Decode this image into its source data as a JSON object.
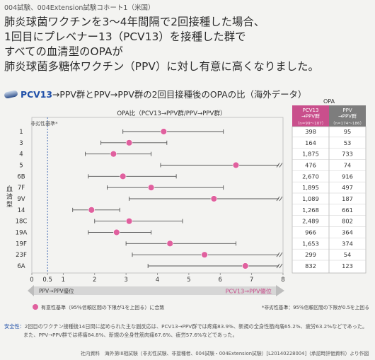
{
  "study_line": "004試験、004Extension試験コホート1（米国）",
  "headline": [
    "肺炎球菌ワクチンを3～4年間隔で2回接種した場合、",
    "1回目にプレベナー13（PCV13）を接種した群で",
    "すべての血清型のOPAが",
    "肺炎球菌多糖体ワクチン（PPV）に対し有意に高くなりました。"
  ],
  "subtitle": {
    "pcv_label": "PCV13",
    "rest": "→PPV群とPPV→PPV群の2回目接種後のOPAの比（海外データ）"
  },
  "colors": {
    "point": "#e0609e",
    "ci_line": "#555555",
    "dashed_line": "#4a6fb5",
    "table_header_pcv": "#c94f8c",
    "table_header_ppv": "#7d7d7d",
    "accent_blue": "#1f4fa8"
  },
  "chart_data": {
    "type": "forest",
    "title": "OPA比（PCV13→PPV群/PPV→PPV群）",
    "ylabel": "血清型",
    "xlim": [
      0,
      8
    ],
    "x_ticks": [
      "0",
      "0.5",
      "1",
      "2",
      "3",
      "4",
      "5",
      "6",
      "7",
      "8"
    ],
    "x_tick_values": [
      0,
      0.5,
      1,
      2,
      3,
      4,
      5,
      6,
      7,
      8
    ],
    "reference_line": {
      "x": 0.5,
      "label": "非劣性基準*"
    },
    "serotypes": [
      {
        "name": "1",
        "ratio": 4.2,
        "ci_low": 2.9,
        "ci_high": 6.1,
        "truncated": false
      },
      {
        "name": "3",
        "ratio": 3.1,
        "ci_low": 2.2,
        "ci_high": 4.3,
        "truncated": false
      },
      {
        "name": "4",
        "ratio": 2.6,
        "ci_low": 1.7,
        "ci_high": 3.8,
        "truncated": false
      },
      {
        "name": "5",
        "ratio": 6.5,
        "ci_low": 4.1,
        "ci_high": 8.0,
        "truncated": true
      },
      {
        "name": "6B",
        "ratio": 2.9,
        "ci_low": 1.8,
        "ci_high": 4.6,
        "truncated": false
      },
      {
        "name": "7F",
        "ratio": 3.8,
        "ci_low": 2.4,
        "ci_high": 6.1,
        "truncated": false
      },
      {
        "name": "9V",
        "ratio": 5.8,
        "ci_low": 3.1,
        "ci_high": 8.0,
        "truncated": true
      },
      {
        "name": "14",
        "ratio": 1.9,
        "ci_low": 1.3,
        "ci_high": 2.8,
        "truncated": false
      },
      {
        "name": "18C",
        "ratio": 3.1,
        "ci_low": 2.0,
        "ci_high": 4.8,
        "truncated": false
      },
      {
        "name": "19A",
        "ratio": 2.7,
        "ci_low": 1.8,
        "ci_high": 3.8,
        "truncated": false
      },
      {
        "name": "19F",
        "ratio": 4.4,
        "ci_low": 3.0,
        "ci_high": 6.5,
        "truncated": false
      },
      {
        "name": "23F",
        "ratio": 5.5,
        "ci_low": 3.2,
        "ci_high": 8.0,
        "truncated": true
      },
      {
        "name": "6A",
        "ratio": 6.8,
        "ci_low": 3.7,
        "ci_high": 8.0,
        "truncated": true
      }
    ],
    "opa_table": {
      "header": "OPA",
      "col1_label": "PCV13\n→PPV群",
      "col1_n": "（n=99～107）",
      "col2_label": "PPV\n→PPV群",
      "col2_n": "（n=174～186）",
      "col1_values": [
        "398",
        "164",
        "1,875",
        "476",
        "2,670",
        "1,895",
        "1,089",
        "1,268",
        "2,489",
        "966",
        "1,653",
        "299",
        "832"
      ],
      "col2_values": [
        "95",
        "53",
        "733",
        "74",
        "916",
        "497",
        "187",
        "661",
        "802",
        "364",
        "374",
        "54",
        "123"
      ]
    },
    "direction_left": "PPV→PPV優位",
    "direction_right": "PCV13→PPV優位",
    "legend_text": "有意性基準（95％信頼区間の下限が1を上回る）に合致",
    "footnote": "*非劣性基準：95％信頼区間の下限が0.5を上回る"
  },
  "safety": {
    "label": "安全性：",
    "line1": "2回目のワクチン接種後14日間に認められた主な副反応は、PCV13→PPV群では疼痛83.9%、新規の全身性筋肉痛65.2%、疲労63.2%などであった。",
    "line2": "また、PPV→PPV群では疼痛84.8%、新規の全身性筋肉痛67.6%、疲労57.6%などであった。"
  },
  "source": "社内資料　海外第III相試験（非劣性試験、非接種者、004試験・004Extension試験）[L20140228004]（承認時評価資料）より作図"
}
